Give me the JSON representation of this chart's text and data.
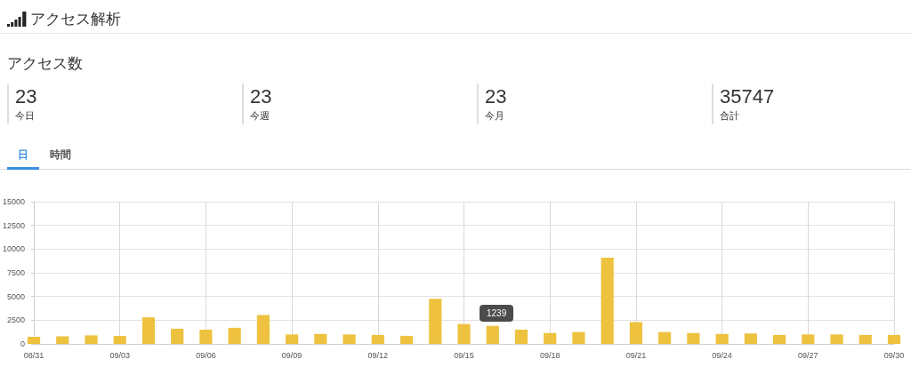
{
  "chart_data": [
    {
      "type": "other",
      "title": "アクセス解析",
      "subtitle": "アクセス数",
      "categories": [
        "今日",
        "今週",
        "今月",
        "合計"
      ],
      "values": [
        23,
        23,
        23,
        35747
      ],
      "data_labels": true,
      "annotations": [
        "日",
        "時間"
      ]
    },
    {
      "type": "bar",
      "categories": [
        "08/31",
        null,
        null,
        "09/03",
        null,
        null,
        "09/06",
        null,
        null,
        "09/09",
        null,
        null,
        "09/12",
        null,
        null,
        "09/15",
        null,
        null,
        "09/18",
        null,
        null,
        "09/21",
        null,
        null,
        "09/24",
        null,
        null,
        "09/27",
        null,
        null,
        "09/30"
      ],
      "values": [
        750,
        800,
        900,
        850,
        2800,
        1600,
        1500,
        1700,
        3050,
        1000,
        1050,
        1000,
        950,
        850,
        4750,
        2100,
        1900,
        1500,
        1150,
        1250,
        9100,
        2300,
        1250,
        1150,
        1050,
        1100,
        950,
        1000,
        1000,
        950,
        950
      ],
      "color": "#eec23f",
      "ylim": [
        0,
        15000
      ],
      "yticks": [
        0,
        2500,
        5000,
        7500,
        10000,
        12500,
        15000
      ],
      "grid": true,
      "annotations": [
        "1239"
      ]
    }
  ]
}
